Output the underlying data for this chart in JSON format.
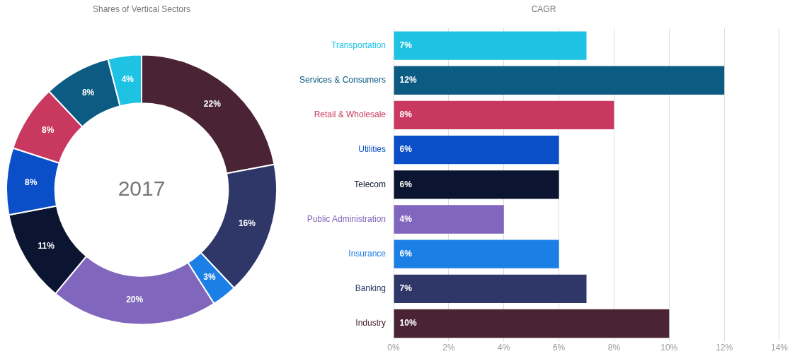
{
  "chart_data": [
    {
      "type": "donut",
      "title": "Shares of Vertical Sectors",
      "categories": [
        null,
        null,
        null,
        null,
        null,
        null,
        null,
        null,
        null
      ],
      "values": [
        22,
        16,
        3,
        20,
        11,
        8,
        8,
        8,
        4
      ],
      "colors": [
        "#4a2434",
        "#2e3768",
        "#1c7fe6",
        "#8066bc",
        "#0b1430",
        "#0a4fc8",
        "#c9385e",
        "#0b5b82",
        "#1ec3e3"
      ],
      "value_labels": [
        "22%",
        "16%",
        "3%",
        "20%",
        "11%",
        "8%",
        "8%",
        "8%",
        "4%"
      ],
      "annotations": [
        "2017"
      ],
      "legend": false
    },
    {
      "type": "bar",
      "orientation": "horizontal",
      "title": "CAGR",
      "categories": [
        "Transportation",
        "Services & Consumers",
        "Retail & Wholesale",
        "Utilities",
        "Telecom",
        "Public Administration",
        "Insurance",
        "Banking",
        "Industry"
      ],
      "values": [
        7,
        12,
        8,
        6,
        6,
        4,
        6,
        7,
        10
      ],
      "colors": [
        "#1ec3e3",
        "#0b5b82",
        "#c9385e",
        "#0a4fc8",
        "#0b1430",
        "#8066bc",
        "#1c7fe6",
        "#2e3768",
        "#4a2434"
      ],
      "value_labels": [
        "7%",
        "12%",
        "8%",
        "6%",
        "6%",
        "4%",
        "6%",
        "7%",
        "10%"
      ],
      "xlim": [
        0,
        14
      ],
      "xticks": [
        {
          "value": 0,
          "label": "0%"
        },
        {
          "value": 2,
          "label": "2%"
        },
        {
          "value": 4,
          "label": "4%"
        },
        {
          "value": 6,
          "label": "6%"
        },
        {
          "value": 8,
          "label": "8%"
        },
        {
          "value": 10,
          "label": "10%"
        },
        {
          "value": 12,
          "label": "12%"
        },
        {
          "value": 14,
          "label": "14%"
        }
      ],
      "grid": "x",
      "legend": false
    }
  ]
}
